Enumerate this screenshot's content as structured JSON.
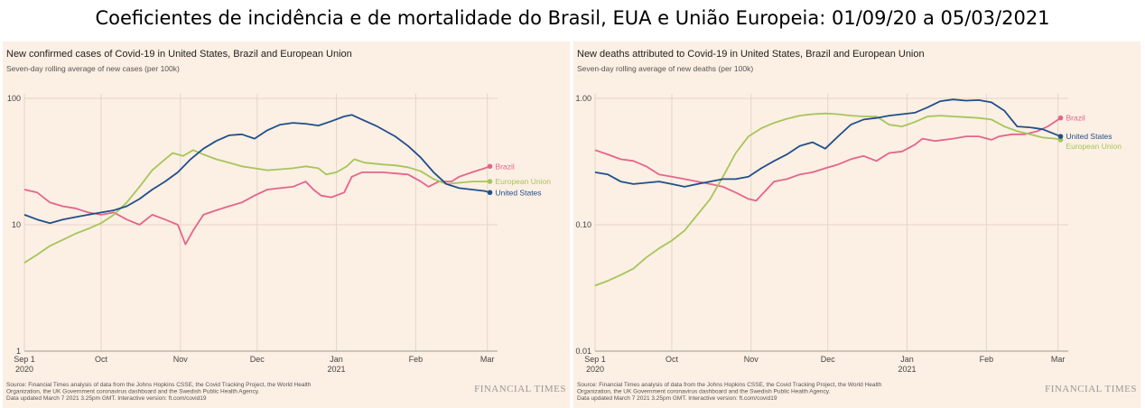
{
  "page_title": "Coeficientes de incidência e de mortalidade do Brasil, EUA e União Europeia: 01/09/20 a 05/03/2021",
  "colors": {
    "brazil": "#e3658d",
    "us": "#1f4f8c",
    "eu": "#a5c65a",
    "panel_bg": "#fcefe3",
    "grid": "#e3d6c9"
  },
  "chart_data": [
    {
      "type": "line",
      "title": "New confirmed cases of Covid-19 in United States, Brazil and European Union",
      "subtitle": "Seven-day rolling average of new cases (per 100k)",
      "y_scale": "log",
      "ylim": [
        1,
        100
      ],
      "y_ticks": [
        {
          "v": 100,
          "label": "100"
        },
        {
          "v": 10,
          "label": "10"
        },
        {
          "v": 1,
          "label": "1"
        }
      ],
      "x_ticks": [
        {
          "d": 0,
          "label": "Sep 1",
          "label2": "2020"
        },
        {
          "d": 30,
          "label": "Oct"
        },
        {
          "d": 61,
          "label": "Nov"
        },
        {
          "d": 91,
          "label": "Dec"
        },
        {
          "d": 122,
          "label": "Jan",
          "label2": "2021"
        },
        {
          "d": 153,
          "label": "Feb"
        },
        {
          "d": 181,
          "label": "Mar"
        }
      ],
      "x_range": [
        0,
        185
      ],
      "series": [
        {
          "name": "Brazil",
          "color": "brazil",
          "points": [
            [
              0,
              19
            ],
            [
              5,
              18
            ],
            [
              10,
              15
            ],
            [
              15,
              14
            ],
            [
              20,
              13.5
            ],
            [
              25,
              12.5
            ],
            [
              30,
              12
            ],
            [
              35,
              12.5
            ],
            [
              40,
              11
            ],
            [
              45,
              10
            ],
            [
              50,
              12
            ],
            [
              55,
              11
            ],
            [
              60,
              10
            ],
            [
              63,
              7
            ],
            [
              66,
              9
            ],
            [
              70,
              12
            ],
            [
              75,
              13
            ],
            [
              80,
              14
            ],
            [
              85,
              15
            ],
            [
              90,
              17
            ],
            [
              95,
              19
            ],
            [
              100,
              19.5
            ],
            [
              105,
              20
            ],
            [
              110,
              22
            ],
            [
              113,
              19
            ],
            [
              116,
              17
            ],
            [
              120,
              16.5
            ],
            [
              125,
              18
            ],
            [
              128,
              24
            ],
            [
              132,
              26
            ],
            [
              140,
              26
            ],
            [
              150,
              25
            ],
            [
              155,
              22
            ],
            [
              158,
              20
            ],
            [
              162,
              22
            ],
            [
              167,
              22
            ],
            [
              170,
              24
            ],
            [
              175,
              26
            ],
            [
              180,
              28
            ],
            [
              182,
              29
            ]
          ]
        },
        {
          "name": "European Union",
          "color": "eu",
          "points": [
            [
              0,
              5
            ],
            [
              5,
              5.8
            ],
            [
              10,
              6.8
            ],
            [
              15,
              7.6
            ],
            [
              20,
              8.5
            ],
            [
              25,
              9.3
            ],
            [
              30,
              10.3
            ],
            [
              35,
              12
            ],
            [
              40,
              15
            ],
            [
              45,
              20
            ],
            [
              50,
              27
            ],
            [
              55,
              33
            ],
            [
              58,
              37
            ],
            [
              62,
              35
            ],
            [
              66,
              39
            ],
            [
              70,
              36
            ],
            [
              75,
              33
            ],
            [
              80,
              31
            ],
            [
              85,
              29
            ],
            [
              90,
              28
            ],
            [
              95,
              27
            ],
            [
              100,
              27.5
            ],
            [
              105,
              28
            ],
            [
              110,
              29
            ],
            [
              115,
              28
            ],
            [
              118,
              25
            ],
            [
              122,
              26
            ],
            [
              126,
              29
            ],
            [
              129,
              33
            ],
            [
              133,
              31
            ],
            [
              140,
              30
            ],
            [
              145,
              29.5
            ],
            [
              150,
              28.5
            ],
            [
              155,
              26.5
            ],
            [
              160,
              23
            ],
            [
              165,
              21
            ],
            [
              170,
              21.5
            ],
            [
              175,
              22
            ],
            [
              180,
              22
            ],
            [
              182,
              22
            ]
          ]
        },
        {
          "name": "United States",
          "color": "us",
          "points": [
            [
              0,
              12
            ],
            [
              5,
              11
            ],
            [
              10,
              10.3
            ],
            [
              15,
              11
            ],
            [
              20,
              11.5
            ],
            [
              25,
              12
            ],
            [
              30,
              12.5
            ],
            [
              35,
              13
            ],
            [
              40,
              14
            ],
            [
              45,
              16
            ],
            [
              50,
              19
            ],
            [
              55,
              22
            ],
            [
              60,
              26
            ],
            [
              65,
              33
            ],
            [
              70,
              40
            ],
            [
              75,
              46
            ],
            [
              80,
              51
            ],
            [
              85,
              52
            ],
            [
              90,
              48
            ],
            [
              95,
              56
            ],
            [
              100,
              62
            ],
            [
              105,
              64
            ],
            [
              110,
              63
            ],
            [
              115,
              61
            ],
            [
              120,
              66
            ],
            [
              125,
              72
            ],
            [
              128,
              74
            ],
            [
              132,
              68
            ],
            [
              138,
              60
            ],
            [
              145,
              50
            ],
            [
              150,
              42
            ],
            [
              155,
              34
            ],
            [
              160,
              26
            ],
            [
              165,
              21
            ],
            [
              170,
              19.5
            ],
            [
              175,
              19
            ],
            [
              180,
              18.5
            ],
            [
              182,
              18
            ]
          ]
        }
      ],
      "labels": {
        "Brazil": "Brazil",
        "European Union": "European Union",
        "United States": "United States"
      },
      "source": "Source: Financial Times analysis of data from the Johns Hopkins CSSE, the Covid Tracking Project, the World Health Organization, the UK Government coronavirus dashboard and the Swedish Public Health Agency.",
      "updated": "Data updated March 7 2021 3.25pm GMT. Interactive version: ft.com/covid19"
    },
    {
      "type": "line",
      "title": "New deaths attributed to Covid-19 in United States, Brazil and European Union",
      "subtitle": "Seven-day rolling average of new deaths (per 100k)",
      "y_scale": "log",
      "ylim": [
        0.01,
        1
      ],
      "y_ticks": [
        {
          "v": 1,
          "label": "1.00"
        },
        {
          "v": 0.1,
          "label": "0.10"
        },
        {
          "v": 0.01,
          "label": "0.01"
        }
      ],
      "x_ticks": [
        {
          "d": 0,
          "label": "Sep 1",
          "label2": "2020"
        },
        {
          "d": 30,
          "label": "Oct"
        },
        {
          "d": 61,
          "label": "Nov"
        },
        {
          "d": 91,
          "label": "Dec"
        },
        {
          "d": 122,
          "label": "Jan",
          "label2": "2021"
        },
        {
          "d": 153,
          "label": "Feb"
        },
        {
          "d": 181,
          "label": "Mar"
        }
      ],
      "x_range": [
        0,
        185
      ],
      "series": [
        {
          "name": "Brazil",
          "color": "brazil",
          "points": [
            [
              0,
              0.39
            ],
            [
              5,
              0.36
            ],
            [
              10,
              0.33
            ],
            [
              15,
              0.32
            ],
            [
              20,
              0.29
            ],
            [
              25,
              0.25
            ],
            [
              30,
              0.24
            ],
            [
              35,
              0.23
            ],
            [
              40,
              0.22
            ],
            [
              45,
              0.21
            ],
            [
              50,
              0.2
            ],
            [
              55,
              0.18
            ],
            [
              60,
              0.16
            ],
            [
              63,
              0.155
            ],
            [
              66,
              0.18
            ],
            [
              70,
              0.22
            ],
            [
              75,
              0.23
            ],
            [
              80,
              0.25
            ],
            [
              85,
              0.26
            ],
            [
              90,
              0.28
            ],
            [
              95,
              0.3
            ],
            [
              100,
              0.33
            ],
            [
              105,
              0.35
            ],
            [
              110,
              0.32
            ],
            [
              115,
              0.37
            ],
            [
              120,
              0.38
            ],
            [
              125,
              0.43
            ],
            [
              128,
              0.48
            ],
            [
              133,
              0.46
            ],
            [
              140,
              0.48
            ],
            [
              145,
              0.5
            ],
            [
              150,
              0.5
            ],
            [
              155,
              0.47
            ],
            [
              158,
              0.5
            ],
            [
              163,
              0.52
            ],
            [
              168,
              0.52
            ],
            [
              173,
              0.55
            ],
            [
              177,
              0.6
            ],
            [
              182,
              0.7
            ]
          ]
        },
        {
          "name": "European Union",
          "color": "eu",
          "points": [
            [
              0,
              0.033
            ],
            [
              5,
              0.036
            ],
            [
              10,
              0.04
            ],
            [
              15,
              0.045
            ],
            [
              20,
              0.055
            ],
            [
              25,
              0.065
            ],
            [
              30,
              0.075
            ],
            [
              35,
              0.09
            ],
            [
              40,
              0.12
            ],
            [
              45,
              0.16
            ],
            [
              50,
              0.24
            ],
            [
              55,
              0.37
            ],
            [
              60,
              0.5
            ],
            [
              65,
              0.58
            ],
            [
              70,
              0.64
            ],
            [
              75,
              0.69
            ],
            [
              80,
              0.73
            ],
            [
              85,
              0.75
            ],
            [
              90,
              0.76
            ],
            [
              95,
              0.75
            ],
            [
              100,
              0.73
            ],
            [
              105,
              0.72
            ],
            [
              110,
              0.72
            ],
            [
              115,
              0.62
            ],
            [
              120,
              0.6
            ],
            [
              125,
              0.65
            ],
            [
              130,
              0.72
            ],
            [
              135,
              0.73
            ],
            [
              140,
              0.72
            ],
            [
              145,
              0.71
            ],
            [
              150,
              0.7
            ],
            [
              155,
              0.68
            ],
            [
              160,
              0.6
            ],
            [
              165,
              0.55
            ],
            [
              170,
              0.52
            ],
            [
              175,
              0.49
            ],
            [
              180,
              0.48
            ],
            [
              182,
              0.47
            ]
          ]
        },
        {
          "name": "United States",
          "color": "us",
          "points": [
            [
              0,
              0.26
            ],
            [
              5,
              0.25
            ],
            [
              10,
              0.22
            ],
            [
              15,
              0.21
            ],
            [
              20,
              0.215
            ],
            [
              25,
              0.22
            ],
            [
              30,
              0.21
            ],
            [
              35,
              0.2
            ],
            [
              40,
              0.21
            ],
            [
              45,
              0.22
            ],
            [
              50,
              0.23
            ],
            [
              55,
              0.23
            ],
            [
              60,
              0.24
            ],
            [
              65,
              0.28
            ],
            [
              70,
              0.32
            ],
            [
              75,
              0.36
            ],
            [
              80,
              0.42
            ],
            [
              85,
              0.45
            ],
            [
              90,
              0.4
            ],
            [
              95,
              0.5
            ],
            [
              100,
              0.62
            ],
            [
              105,
              0.68
            ],
            [
              110,
              0.7
            ],
            [
              115,
              0.73
            ],
            [
              120,
              0.75
            ],
            [
              125,
              0.77
            ],
            [
              130,
              0.85
            ],
            [
              135,
              0.95
            ],
            [
              140,
              0.98
            ],
            [
              145,
              0.96
            ],
            [
              150,
              0.97
            ],
            [
              155,
              0.93
            ],
            [
              160,
              0.8
            ],
            [
              165,
              0.6
            ],
            [
              170,
              0.59
            ],
            [
              175,
              0.57
            ],
            [
              180,
              0.52
            ],
            [
              182,
              0.5
            ]
          ]
        }
      ],
      "labels": {
        "Brazil": "Brazil",
        "United States": "United States",
        "European Union": "European Union"
      },
      "source": "Source: Financial Times analysis of data from the Johns Hopkins CSSE, the Covid Tracking Project, the World Health Organization, the UK Government coronavirus dashboard and the Swedish Public Health Agency.",
      "updated": "Data updated March 7 2021 3.25pm GMT. Interactive version: ft.com/covid19"
    }
  ],
  "brand": "FINANCIAL TIMES"
}
